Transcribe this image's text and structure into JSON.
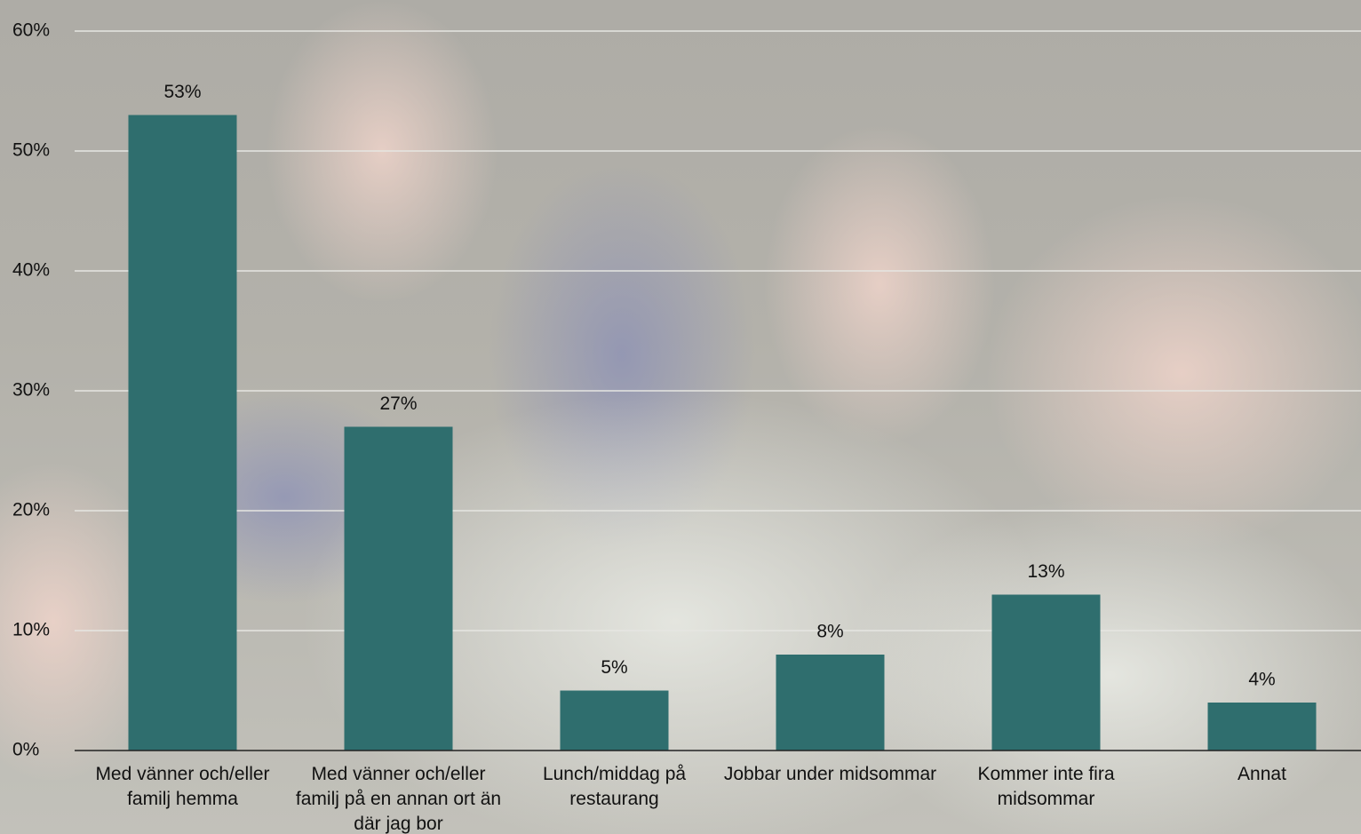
{
  "chart_data": {
    "type": "bar",
    "categories": [
      "Med vänner och/eller familj hemma",
      "Med vänner och/eller familj på en annan ort än där jag bor",
      "Lunch/middag på restaurang",
      "Jobbar under midsommar",
      "Kommer inte fira midsommar",
      "Annat"
    ],
    "values": [
      53,
      27,
      5,
      8,
      13,
      4
    ],
    "value_labels": [
      "53%",
      "27%",
      "5%",
      "8%",
      "13%",
      "4%"
    ],
    "color": "#2f6e6e",
    "ylim": [
      0,
      60
    ],
    "yticks": [
      {
        "value": 0,
        "label": "0%"
      },
      {
        "value": 10,
        "label": "10%"
      },
      {
        "value": 20,
        "label": "20%"
      },
      {
        "value": 30,
        "label": "30%"
      },
      {
        "value": 40,
        "label": "40%"
      },
      {
        "value": 50,
        "label": "50%"
      },
      {
        "value": 60,
        "label": "60%"
      }
    ],
    "grid": true
  }
}
